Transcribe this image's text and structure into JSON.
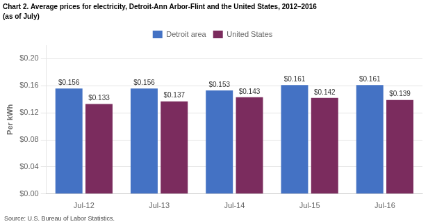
{
  "chart_data": {
    "type": "bar",
    "title": "Chart 2. Average prices for electricity, Detroit-Ann Arbor-Flint and the United States, 2012–2016",
    "subtitle": "(as of July)",
    "ylabel": "Per kWh",
    "source": "Source: U.S. Bureau of Labor Statistics.",
    "categories": [
      "Jul-12",
      "Jul-13",
      "Jul-14",
      "Jul-15",
      "Jul-16"
    ],
    "series": [
      {
        "name": "Detroit area",
        "color": "#4472C4",
        "values": [
          0.156,
          0.156,
          0.153,
          0.161,
          0.161
        ],
        "value_labels": [
          "$0.156",
          "$0.156",
          "$0.153",
          "$0.161",
          "$0.161"
        ]
      },
      {
        "name": "United States",
        "color": "#7B2C5E",
        "values": [
          0.133,
          0.137,
          0.143,
          0.142,
          0.139
        ],
        "value_labels": [
          "$0.133",
          "$0.137",
          "$0.143",
          "$0.142",
          "$0.139"
        ]
      }
    ],
    "ylim": [
      0,
      0.22
    ],
    "yticks": [
      {
        "value": 0.0,
        "label": "$0.00"
      },
      {
        "value": 0.04,
        "label": "$0.04"
      },
      {
        "value": 0.08,
        "label": "$0.08"
      },
      {
        "value": 0.12,
        "label": "$0.12"
      },
      {
        "value": 0.16,
        "label": "$0.16"
      },
      {
        "value": 0.2,
        "label": "$0.20"
      }
    ],
    "grid": true,
    "legend": "top",
    "data_labels": true
  }
}
